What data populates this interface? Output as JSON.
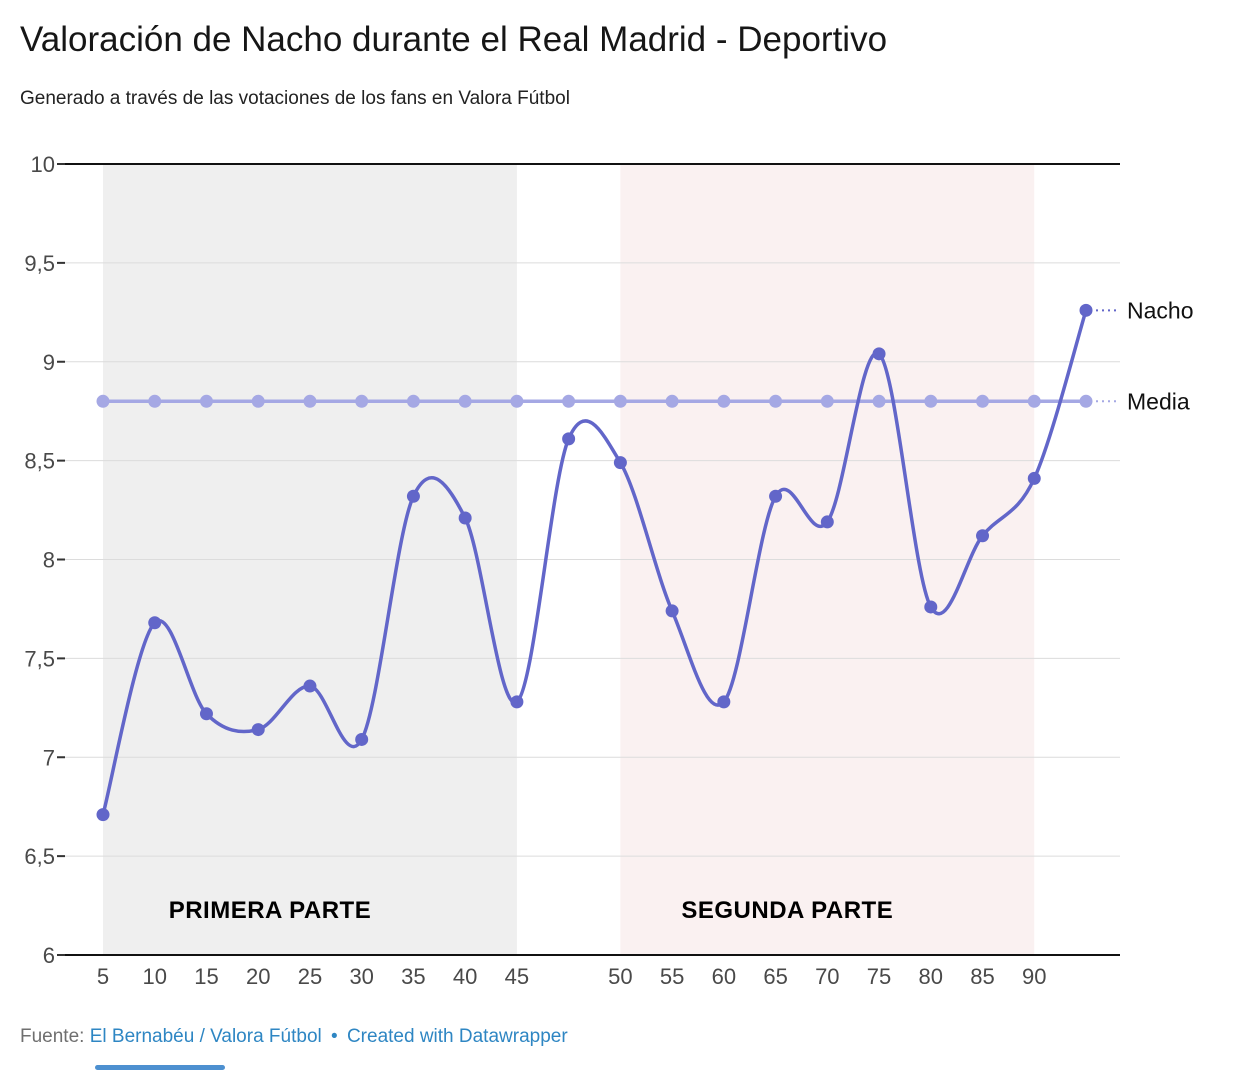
{
  "header": {
    "title": "Valoración de Nacho durante el Real Madrid - Deportivo",
    "subtitle": "Generado a través de las votaciones de los fans en Valora Fútbol"
  },
  "footer": {
    "source_label": "Fuente:",
    "source_link": "El Bernabéu / Valora Fútbol",
    "separator": "•",
    "credit_link": "Created with Datawrapper",
    "link_color": "#2e86c3"
  },
  "chart_data": {
    "type": "line",
    "title": "Valoración de Nacho durante el Real Madrid - Deportivo",
    "subtitle": "Generado a través de las votaciones de los fans en Valora Fútbol",
    "x_categories": [
      "5",
      "10",
      "15",
      "20",
      "25",
      "30",
      "35",
      "40",
      "45",
      "",
      "50",
      "55",
      "60",
      "65",
      "70",
      "75",
      "80",
      "85",
      "90",
      ""
    ],
    "xlabel": "",
    "ylabel": "",
    "ylim": [
      6,
      10
    ],
    "y_ticks": [
      {
        "value": 6,
        "label": "6"
      },
      {
        "value": 6.5,
        "label": "6,5"
      },
      {
        "value": 7,
        "label": "7"
      },
      {
        "value": 7.5,
        "label": "7,5"
      },
      {
        "value": 8,
        "label": "8"
      },
      {
        "value": 8.5,
        "label": "8,5"
      },
      {
        "value": 9,
        "label": "9"
      },
      {
        "value": 9.5,
        "label": "9,5"
      },
      {
        "value": 10,
        "label": "10"
      }
    ],
    "grid": true,
    "legend_position": "right-of-line-end",
    "series": [
      {
        "name": "Media",
        "color": "#a5a8e4",
        "values": [
          8.8,
          8.8,
          8.8,
          8.8,
          8.8,
          8.8,
          8.8,
          8.8,
          8.8,
          8.8,
          8.8,
          8.8,
          8.8,
          8.8,
          8.8,
          8.8,
          8.8,
          8.8,
          8.8,
          8.8
        ]
      },
      {
        "name": "Nacho",
        "color": "#6266c9",
        "values": [
          6.71,
          7.68,
          7.22,
          7.14,
          7.36,
          7.09,
          8.32,
          8.21,
          7.28,
          8.61,
          8.49,
          7.74,
          7.28,
          8.32,
          8.19,
          9.04,
          7.76,
          8.12,
          8.41,
          9.26
        ]
      }
    ],
    "bands": [
      {
        "label": "PRIMERA PARTE",
        "from_index": 0,
        "to_index": 8,
        "color": "#efefef"
      },
      {
        "label": "SEGUNDA PARTE",
        "from_index": 10,
        "to_index": 18,
        "color": "#faf1f1"
      }
    ]
  }
}
